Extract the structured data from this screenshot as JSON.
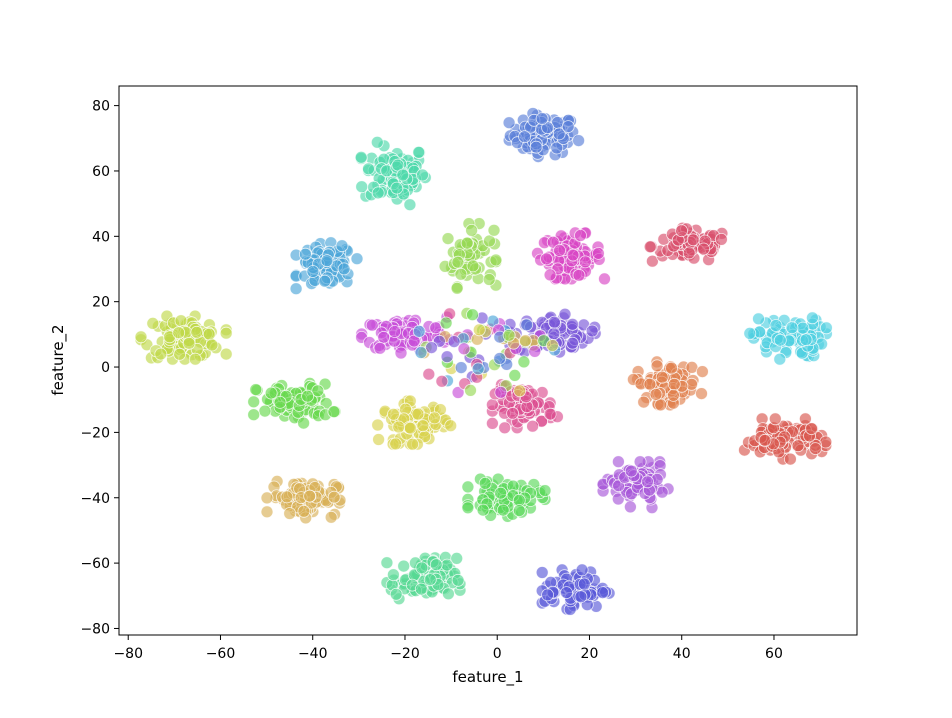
{
  "chart_data": {
    "type": "scatter",
    "title": "",
    "xlabel": "feature_1",
    "ylabel": "feature_2",
    "xlim": [
      -82,
      78
    ],
    "ylim": [
      -82,
      86
    ],
    "xticks": [
      -80,
      -60,
      -40,
      -20,
      0,
      20,
      40,
      60
    ],
    "yticks": [
      -80,
      -60,
      -40,
      -20,
      0,
      20,
      40,
      60,
      80
    ],
    "xtick_labels": [
      "−80",
      "−60",
      "−40",
      "−20",
      "0",
      "20",
      "40",
      "60"
    ],
    "ytick_labels": [
      "−80",
      "−60",
      "−40",
      "−20",
      "0",
      "20",
      "40",
      "60",
      "80"
    ],
    "grid": false,
    "legend": "none",
    "marker_alpha": 0.65,
    "marker_edge_color": "#ffffff",
    "clusters": [
      {
        "color": "#5b7fd9",
        "cx": 10,
        "cy": 71,
        "sx": 3.6,
        "sy": 3.0,
        "n": 90
      },
      {
        "color": "#4fd9aa",
        "cx": -22,
        "cy": 59,
        "sx": 3.4,
        "sy": 4.5,
        "n": 90
      },
      {
        "color": "#96d955",
        "cx": -6,
        "cy": 34,
        "sx": 2.6,
        "sy": 4.5,
        "n": 60
      },
      {
        "color": "#d947c4",
        "cx": 16,
        "cy": 34,
        "sx": 3.3,
        "sy": 3.2,
        "n": 80
      },
      {
        "color": "#d94f6b",
        "cx": 42,
        "cy": 37,
        "sx": 4.2,
        "sy": 2.5,
        "n": 80
      },
      {
        "color": "#4da6d9",
        "cx": -37,
        "cy": 31,
        "sx": 3.0,
        "sy": 3.2,
        "n": 80
      },
      {
        "color": "#c0d94a",
        "cx": -68,
        "cy": 9,
        "sx": 4.2,
        "sy": 3.0,
        "n": 90
      },
      {
        "color": "#c74fd9",
        "cx": -20,
        "cy": 10,
        "sx": 4.5,
        "sy": 2.6,
        "n": 100
      },
      {
        "color": "#7a57d9",
        "cx": 12,
        "cy": 10,
        "sx": 4.2,
        "sy": 2.8,
        "n": 90
      },
      {
        "color": "#4fd0e0",
        "cx": 63,
        "cy": 9,
        "sx": 3.8,
        "sy": 3.0,
        "n": 80
      },
      {
        "color": "#68d94f",
        "cx": -44,
        "cy": -11,
        "sx": 4.0,
        "sy": 2.8,
        "n": 90
      },
      {
        "color": "#e0814f",
        "cx": 37,
        "cy": -5,
        "sx": 3.4,
        "sy": 3.0,
        "n": 80
      },
      {
        "color": "#dc4f91",
        "cx": 6,
        "cy": -12,
        "sx": 3.2,
        "sy": 3.0,
        "n": 80
      },
      {
        "color": "#d9d34f",
        "cx": -18,
        "cy": -17,
        "sx": 3.6,
        "sy": 3.0,
        "n": 80
      },
      {
        "color": "#d9584f",
        "cx": 62,
        "cy": -22,
        "sx": 4.2,
        "sy": 2.8,
        "n": 90
      },
      {
        "color": "#a757d9",
        "cx": 30,
        "cy": -36,
        "sx": 3.2,
        "sy": 3.2,
        "n": 80
      },
      {
        "color": "#5bd95b",
        "cx": 2,
        "cy": -40,
        "sx": 3.8,
        "sy": 2.6,
        "n": 80
      },
      {
        "color": "#d9b057",
        "cx": -42,
        "cy": -40,
        "sx": 3.6,
        "sy": 2.8,
        "n": 90
      },
      {
        "color": "#57d994",
        "cx": -16,
        "cy": -65,
        "sx": 3.6,
        "sy": 3.2,
        "n": 90
      },
      {
        "color": "#5a5ad9",
        "cx": 17,
        "cy": -68,
        "sx": 3.3,
        "sy": 2.8,
        "n": 80
      }
    ],
    "bridge": {
      "cx": -2,
      "cy": 5,
      "n": 80,
      "colors": [
        "#c74fd9",
        "#7a57d9",
        "#96d955",
        "#dc4f91",
        "#5b7fd9",
        "#d9d34f",
        "#4da6d9",
        "#68d94f",
        "#d9b057"
      ]
    }
  }
}
